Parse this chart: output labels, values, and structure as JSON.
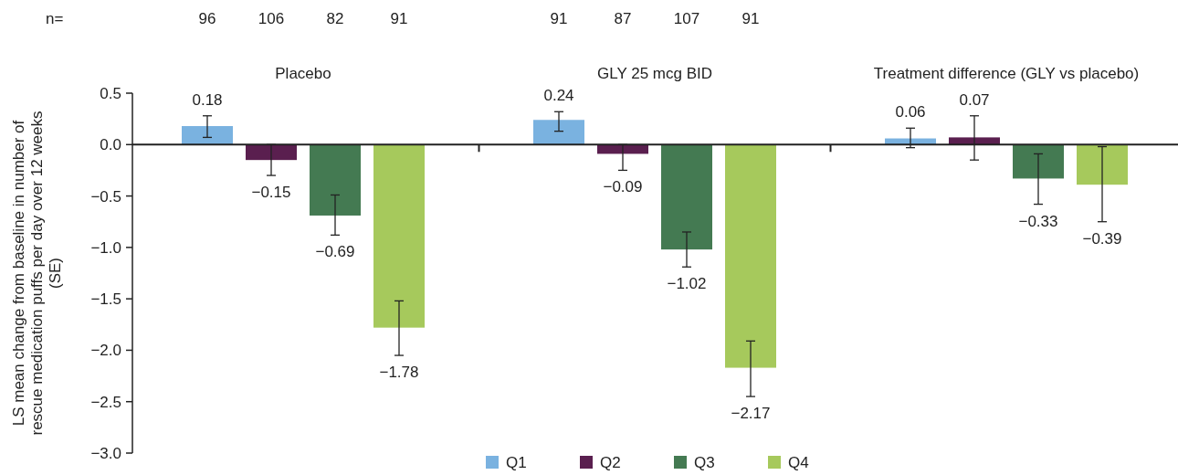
{
  "chart_data": {
    "type": "bar",
    "categories": [
      "Placebo",
      "GLY 25 mcg BID",
      "Treatment difference (GLY vs placebo)"
    ],
    "ylabel": "LS mean change from baseline in number of rescue medication puffs per day over 12 weeks (SE)",
    "ylim": [
      -3.0,
      0.5
    ],
    "yticks": [
      {
        "value": 0.5,
        "label": "0.5"
      },
      {
        "value": 0,
        "label": "0.0"
      },
      {
        "value": -0.5,
        "label": "−0.5"
      },
      {
        "value": -1,
        "label": "−1.0"
      },
      {
        "value": -1.5,
        "label": "−1.5"
      },
      {
        "value": -2,
        "label": "−2.0"
      },
      {
        "value": -2.5,
        "label": "−2.5"
      },
      {
        "value": -3,
        "label": "−3.0"
      }
    ],
    "series": [
      {
        "name": "Q1",
        "color": "#7ab2e0",
        "values": [
          0.18,
          0.24,
          0.06
        ],
        "errors": [
          [
            0.07,
            0.28
          ],
          [
            0.13,
            0.32
          ],
          [
            -0.03,
            0.16
          ]
        ],
        "value_labels": [
          "0.18",
          "0.24",
          "0.06"
        ]
      },
      {
        "name": "Q2",
        "color": "#5a1f4f",
        "values": [
          -0.15,
          -0.09,
          0.07
        ],
        "errors": [
          [
            -0.3,
            0.0
          ],
          [
            -0.25,
            0.0
          ],
          [
            -0.15,
            0.28
          ]
        ],
        "value_labels": [
          "−0.15",
          "−0.09",
          "0.07"
        ]
      },
      {
        "name": "Q3",
        "color": "#447a52",
        "values": [
          -0.69,
          -1.02,
          -0.33
        ],
        "errors": [
          [
            -0.88,
            -0.49
          ],
          [
            -1.19,
            -0.85
          ],
          [
            -0.58,
            -0.09
          ]
        ],
        "value_labels": [
          "−0.69",
          "−1.02",
          "−0.33"
        ]
      },
      {
        "name": "Q4",
        "color": "#a6c95c",
        "values": [
          -1.78,
          -2.17,
          -0.39
        ],
        "errors": [
          [
            -2.05,
            -1.52
          ],
          [
            -2.45,
            -1.91
          ],
          [
            -0.75,
            -0.02
          ]
        ],
        "value_labels": [
          "−1.78",
          "−2.17",
          "−0.39"
        ]
      }
    ],
    "annotations": [
      "n=",
      "96",
      "106",
      "82",
      "91",
      "91",
      "87",
      "107",
      "91"
    ],
    "legend": "bottom"
  }
}
